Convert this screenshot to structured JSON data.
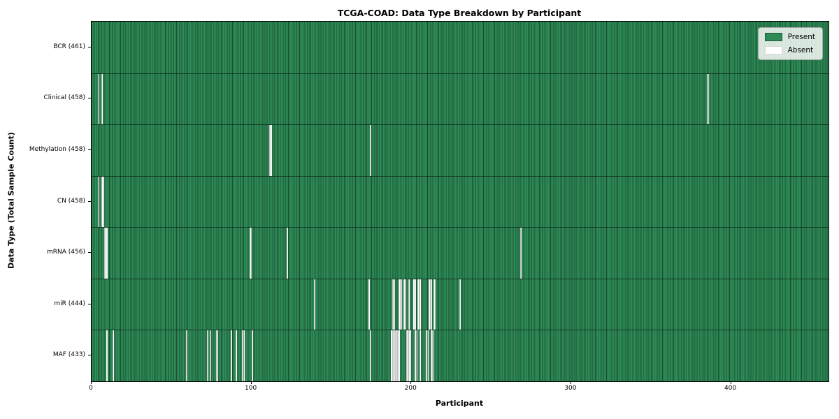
{
  "title": "TCGA-COAD: Data Type Breakdown by Participant",
  "xlabel": "Participant",
  "ylabel": "Data Type (Total Sample Count)",
  "legend": {
    "items": [
      {
        "label": "Present",
        "color": "#2e8b57"
      },
      {
        "label": "Absent",
        "color": "#ffffff"
      }
    ],
    "position": "upper right"
  },
  "colors": {
    "present": "#2e8b57",
    "absent": "#ffffff",
    "bar_edge": "#0a2414",
    "plot_border": "#000000"
  },
  "chart_data": {
    "type": "heatmap",
    "title": "TCGA-COAD: Data Type Breakdown by Participant",
    "xlabel": "Participant",
    "ylabel": "Data Type (Total Sample Count)",
    "xlim": [
      0,
      461
    ],
    "x_ticks": [
      0,
      100,
      200,
      300,
      400
    ],
    "grid": false,
    "legend_position": "upper right",
    "legend_entries": [
      "Present",
      "Absent"
    ],
    "n_participants": 461,
    "rows": [
      {
        "label": "BCR (461)",
        "name": "BCR",
        "present_count": 461,
        "absent_participants": []
      },
      {
        "label": "Clinical (458)",
        "name": "Clinical",
        "present_count": 458,
        "absent_participants": [
          4,
          6,
          385
        ]
      },
      {
        "label": "Methylation (458)",
        "name": "Methylation",
        "present_count": 458,
        "absent_participants": [
          111,
          112,
          174
        ]
      },
      {
        "label": "CN (458)",
        "name": "CN",
        "present_count": 458,
        "absent_participants": [
          4,
          6,
          7
        ]
      },
      {
        "label": "mRNA (456)",
        "name": "mRNA",
        "present_count": 456,
        "absent_participants": [
          8,
          9,
          99,
          122,
          268
        ]
      },
      {
        "label": "miR (444)",
        "name": "miR",
        "present_count": 444,
        "absent_participants": [
          139,
          173,
          188,
          189,
          192,
          193,
          195,
          196,
          198,
          201,
          202,
          204,
          205,
          211,
          212,
          214,
          230
        ]
      },
      {
        "label": "MAF (433)",
        "name": "MAF",
        "present_count": 433,
        "absent_participants": [
          9,
          13,
          59,
          72,
          74,
          78,
          87,
          90,
          94,
          95,
          100,
          174,
          187,
          188,
          189,
          190,
          191,
          192,
          197,
          198,
          199,
          202,
          203,
          205,
          209,
          210,
          212,
          213
        ]
      }
    ]
  }
}
